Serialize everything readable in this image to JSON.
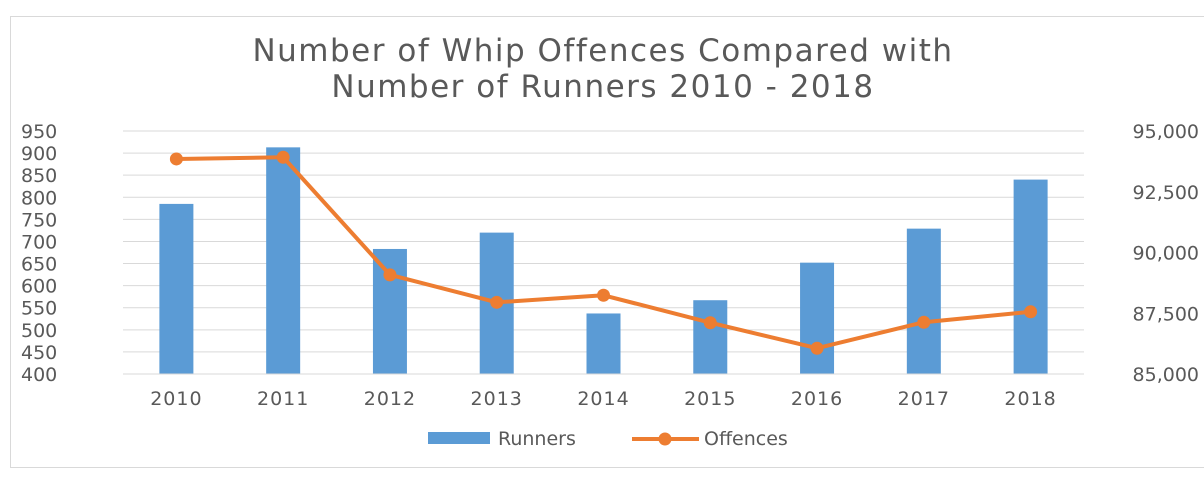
{
  "chart_data": {
    "type": "bar+line",
    "title_lines": [
      "Number of Whip Offences Compared with",
      "Number of Runners 2010 - 2018"
    ],
    "categories": [
      "2010",
      "2011",
      "2012",
      "2013",
      "2014",
      "2015",
      "2016",
      "2017",
      "2018"
    ],
    "series": [
      {
        "name": "Runners",
        "type": "bar",
        "axis": "left",
        "values": [
          785,
          913,
          683,
          720,
          537,
          567,
          652,
          729,
          840
        ]
      },
      {
        "name": "Offences",
        "type": "line",
        "axis": "right",
        "values": [
          93850,
          93920,
          89080,
          87950,
          88240,
          87110,
          86060,
          87130,
          87560
        ]
      }
    ],
    "y_left": {
      "min": 400,
      "max": 950,
      "ticks": [
        "950",
        "900",
        "850",
        "800",
        "750",
        "700",
        "650",
        "600",
        "550",
        "500",
        "450",
        "400"
      ]
    },
    "y_right": {
      "min": 85000,
      "max": 95000,
      "ticks": [
        "95,000",
        "92,500",
        "90,000",
        "87,500",
        "85,000"
      ]
    },
    "grid": true,
    "legend_position": "bottom",
    "colors": {
      "bar": "#5b9bd5",
      "line": "#ed7d31",
      "grid": "#d9d9d9",
      "text": "#595959"
    }
  }
}
